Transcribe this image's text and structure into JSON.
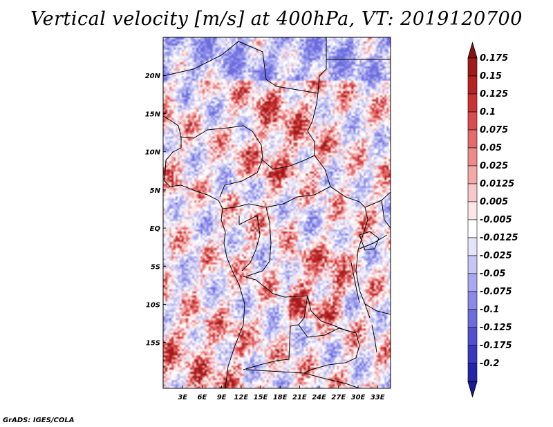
{
  "title": "Vertical velocity [m/s] at 400hPa, VT: 2019120700",
  "credit": "GrADS: IGES/COLA",
  "map": {
    "lon_range": [
      0,
      35
    ],
    "lat_range": [
      -21,
      25
    ],
    "lat_labels": [
      {
        "text": "20N",
        "lat": 20
      },
      {
        "text": "15N",
        "lat": 15
      },
      {
        "text": "10N",
        "lat": 10
      },
      {
        "text": "5N",
        "lat": 5
      },
      {
        "text": "EQ",
        "lat": 0
      },
      {
        "text": "5S",
        "lat": -5
      },
      {
        "text": "10S",
        "lat": -10
      },
      {
        "text": "15S",
        "lat": -15
      }
    ],
    "lon_labels": [
      {
        "text": "3E",
        "lon": 3
      },
      {
        "text": "6E",
        "lon": 6
      },
      {
        "text": "9E",
        "lon": 9
      },
      {
        "text": "12E",
        "lon": 12
      },
      {
        "text": "15E",
        "lon": 15
      },
      {
        "text": "18E",
        "lon": 18
      },
      {
        "text": "21E",
        "lon": 21
      },
      {
        "text": "24E",
        "lon": 24
      },
      {
        "text": "27E",
        "lon": 27
      },
      {
        "text": "30E",
        "lon": 30
      },
      {
        "text": "33E",
        "lon": 33
      }
    ]
  },
  "colorbar": {
    "levels": [
      {
        "label": "0.175",
        "color": "#a11a1a"
      },
      {
        "label": "0.15",
        "color": "#b82222"
      },
      {
        "label": "0.125",
        "color": "#cd3232"
      },
      {
        "label": "0.1",
        "color": "#dc4c4c"
      },
      {
        "label": "0.075",
        "color": "#e56a6a"
      },
      {
        "label": "0.05",
        "color": "#ef8a8a"
      },
      {
        "label": "0.025",
        "color": "#f5a8a8"
      },
      {
        "label": "0.0125",
        "color": "#f9c8c8"
      },
      {
        "label": "0.005",
        "color": "#fce6e6"
      },
      {
        "label": "-0.005",
        "color": "#ffffff"
      },
      {
        "label": "-0.0125",
        "color": "#e4e4fa"
      },
      {
        "label": "-0.025",
        "color": "#c6c6f5"
      },
      {
        "label": "-0.05",
        "color": "#a8a8f0"
      },
      {
        "label": "-0.075",
        "color": "#8a8ae8"
      },
      {
        "label": "-0.1",
        "color": "#6c6cdd"
      },
      {
        "label": "-0.125",
        "color": "#5050d0"
      },
      {
        "label": "-0.175",
        "color": "#3838c0"
      },
      {
        "label": "-0.2",
        "color": "#2424ad"
      }
    ],
    "top_color": "#8c1010",
    "bottom_color": "#1a1a98"
  }
}
